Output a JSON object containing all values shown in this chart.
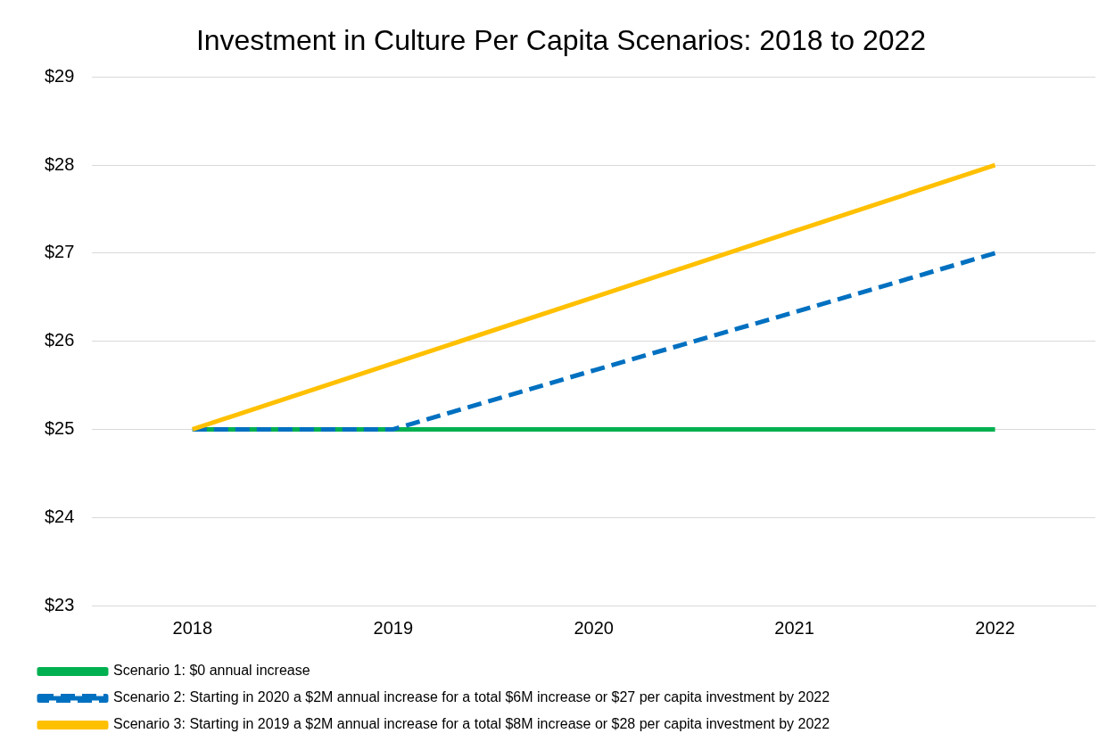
{
  "chart_data": {
    "type": "line",
    "title": "Investment in Culture Per Capita Scenarios: 2018 to 2022",
    "categories": [
      "2018",
      "2019",
      "2020",
      "2021",
      "2022"
    ],
    "series": [
      {
        "name": "Scenario 1: $0 annual increase",
        "color": "#00b050",
        "values": [
          25,
          25,
          25,
          25,
          25
        ],
        "line_style": "solid"
      },
      {
        "name": "Scenario 2: Starting in 2020 a $2M annual increase for a total $6M increase or $27 per capita investment by 2022",
        "color": "#0070c0",
        "values": [
          25,
          25,
          25.67,
          26.33,
          27
        ],
        "line_style": "dashed"
      },
      {
        "name": "Scenario 3: Starting in 2019 a $2M annual increase for a total $8M increase or $28 per capita investment by 2022",
        "color": "#ffc000",
        "values": [
          25,
          25.75,
          26.5,
          27.25,
          28
        ],
        "line_style": "solid"
      }
    ],
    "ylim": [
      23,
      29
    ],
    "yticks": [
      {
        "value": 23,
        "label": "$23"
      },
      {
        "value": 24,
        "label": "$24"
      },
      {
        "value": 25,
        "label": "$25"
      },
      {
        "value": 26,
        "label": "$26"
      },
      {
        "value": 27,
        "label": "$27"
      },
      {
        "value": 28,
        "label": "$28"
      },
      {
        "value": 29,
        "label": "$29"
      }
    ],
    "grid": "y",
    "legend": "bottom",
    "marker": "none"
  }
}
